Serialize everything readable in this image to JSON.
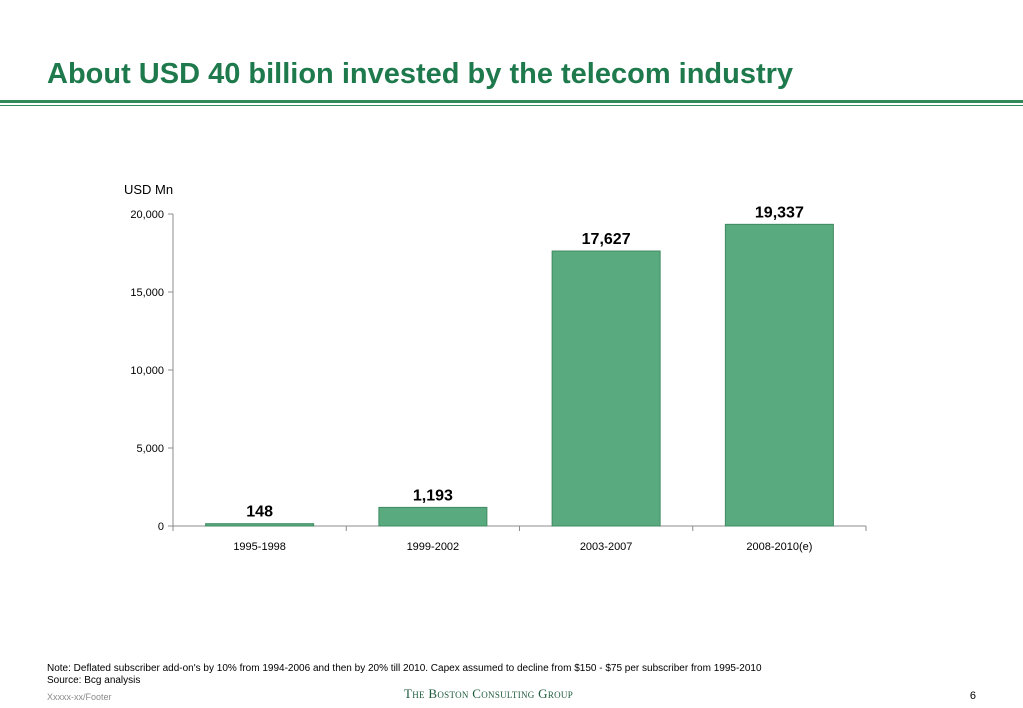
{
  "page": {
    "title": "About USD 40 billion invested by the telecom industry",
    "note": "Note: Deflated subscriber add-on's by 10% from 1994-2006 and then by 20% till 2010. Capex assumed to decline from $150 - $75 per subscriber from 1995-2010",
    "source": "Source: Bcg analysis",
    "footer_code": "Xxxxx-xx/Footer",
    "logo_text": "The Boston Consulting Group",
    "page_number": "6"
  },
  "colors": {
    "accent": "#1e7a4c",
    "rule": "#2f8a5a",
    "bar": "#5aaa7f",
    "bar_stroke": "#3f8a62"
  },
  "chart_data": {
    "type": "bar",
    "ylabel": "USD Mn",
    "categories": [
      "1995-1998",
      "1999-2002",
      "2003-2007",
      "2008-2010(e)"
    ],
    "values": [
      148,
      1193,
      17627,
      19337
    ],
    "data_labels": [
      "148",
      "1,193",
      "17,627",
      "19,337"
    ],
    "ylim": [
      0,
      20000
    ],
    "yticks": [
      0,
      5000,
      10000,
      15000,
      20000
    ],
    "ytick_labels": [
      "0",
      "5,000",
      "10,000",
      "15,000",
      "20,000"
    ],
    "grid": false,
    "legend": "none"
  }
}
